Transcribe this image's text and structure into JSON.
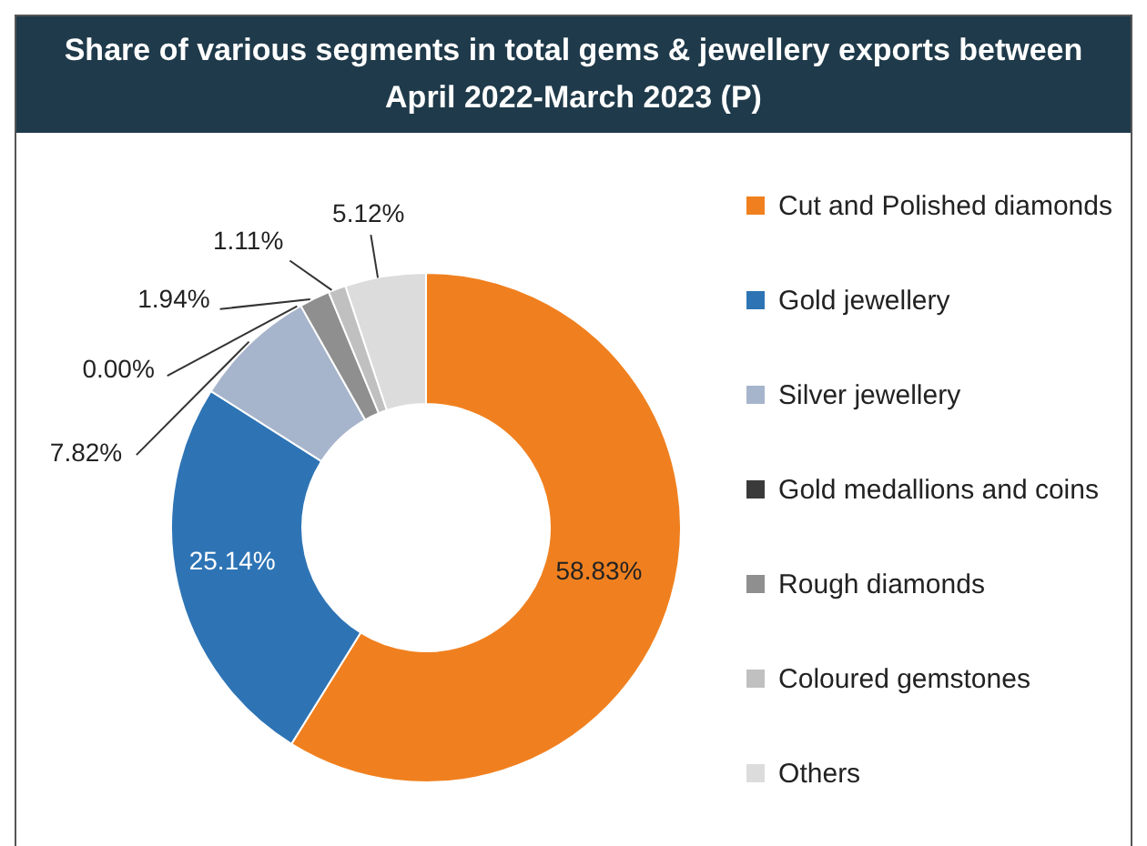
{
  "chart_data": {
    "type": "donut",
    "title": "Share of various segments in total gems & jewellery exports between April 2022-March 2023 (P)",
    "categories": [
      "Cut and Polished diamonds",
      "Gold jewellery",
      "Silver jewellery",
      "Gold medallions and coins",
      "Rough diamonds",
      "Coloured gemstones",
      "Others"
    ],
    "values": [
      58.83,
      25.14,
      7.82,
      0,
      1.94,
      1.11,
      5.12
    ],
    "colors": [
      "#f0801f",
      "#2e74b5",
      "#a7b5cc",
      "#3a3a3a",
      "#8f8f8f",
      "#c0c0c0",
      "#dcdcdc"
    ],
    "value_labels": [
      "58.83%",
      "25.14%",
      "7.82%",
      "0.00%",
      "1.94%",
      "1.11%",
      "5.12%"
    ],
    "legend": "right"
  }
}
